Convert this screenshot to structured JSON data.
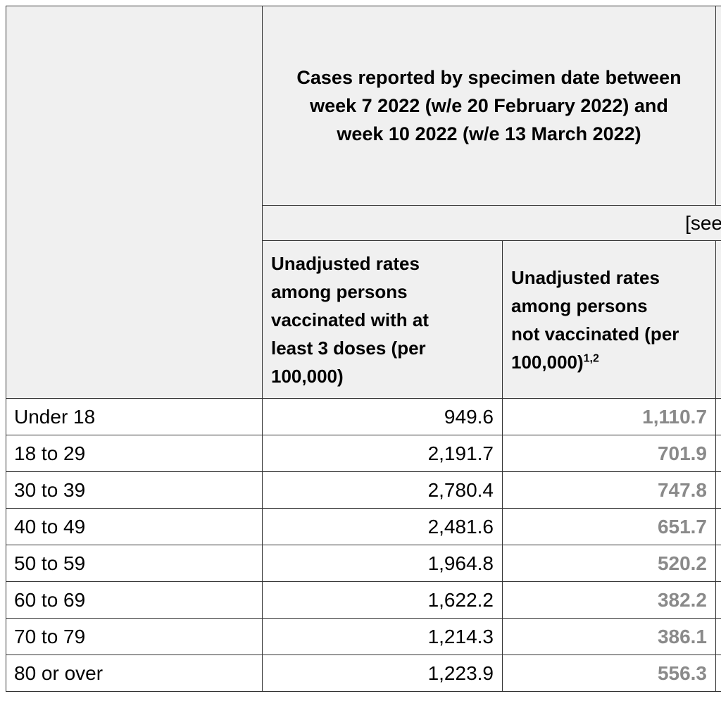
{
  "colors": {
    "body_bg": "#ffffff",
    "row_bg": "#ffffff",
    "header_bg": "#f0f0f0",
    "border": "#333333",
    "text": "#000000",
    "unvax_value": "#8a8a8a"
  },
  "table": {
    "spanning_header": "Cases reported by specimen date between\nweek 7 2022 (w/e 20 February 2022) and\nweek 10 2022 (w/e 13 March 2022)",
    "see_note": "[see",
    "columns": [
      {
        "label": "Unadjusted rates\namong persons\nvaccinated with at\nleast 3 doses (per\n100,000)",
        "superscript": ""
      },
      {
        "label": "Unadjusted rates\namong persons\nnot vaccinated (per\n100,000)",
        "superscript": "1,2"
      }
    ],
    "rows": [
      {
        "age_group": "Under 18",
        "vaccinated_rate": "949.6",
        "unvaccinated_rate": "1,110.7"
      },
      {
        "age_group": "18 to 29",
        "vaccinated_rate": "2,191.7",
        "unvaccinated_rate": "701.9"
      },
      {
        "age_group": "30 to 39",
        "vaccinated_rate": "2,780.4",
        "unvaccinated_rate": "747.8"
      },
      {
        "age_group": "40 to 49",
        "vaccinated_rate": "2,481.6",
        "unvaccinated_rate": "651.7"
      },
      {
        "age_group": "50 to 59",
        "vaccinated_rate": "1,964.8",
        "unvaccinated_rate": "520.2"
      },
      {
        "age_group": "60 to 69",
        "vaccinated_rate": "1,622.2",
        "unvaccinated_rate": "382.2"
      },
      {
        "age_group": "70 to 79",
        "vaccinated_rate": "1,214.3",
        "unvaccinated_rate": "386.1"
      },
      {
        "age_group": "80 or over",
        "vaccinated_rate": "1,223.9",
        "unvaccinated_rate": "556.3"
      }
    ]
  }
}
